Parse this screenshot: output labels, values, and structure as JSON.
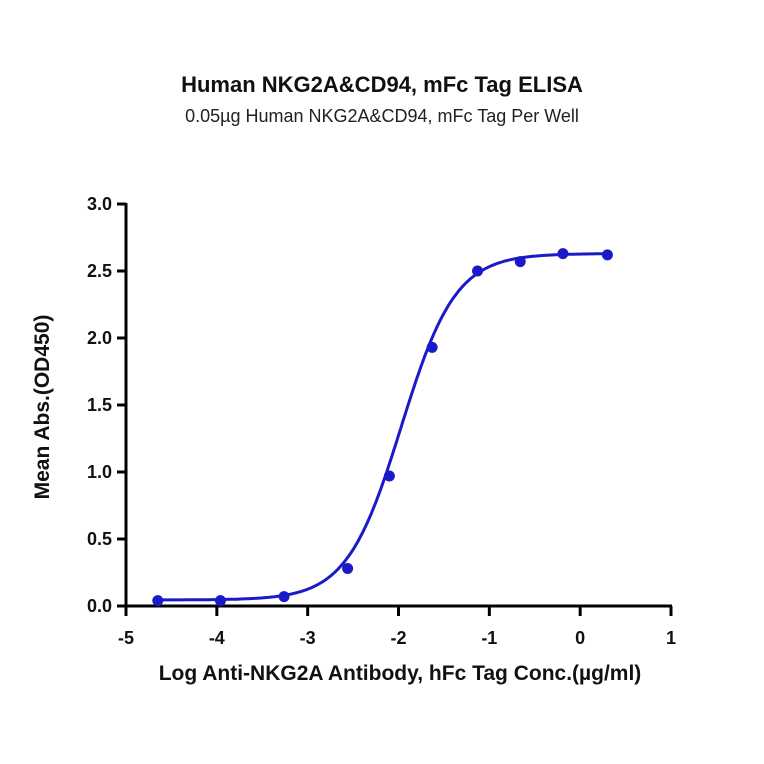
{
  "chart_data": {
    "type": "scatter",
    "title": "Human NKG2A&CD94, mFc Tag ELISA",
    "subtitle": "0.05µg Human NKG2A&CD94, mFc Tag Per Well",
    "xlabel": "Log Anti-NKG2A Antibody, hFc Tag Conc.(µg/ml)",
    "ylabel": "Mean Abs.(OD450)",
    "xlim": [
      -5,
      1
    ],
    "ylim": [
      0,
      3.0
    ],
    "xticks": [
      "-5",
      "-4",
      "-3",
      "-2",
      "-1",
      "0",
      "1"
    ],
    "yticks": [
      "0.0",
      "0.5",
      "1.0",
      "1.5",
      "2.0",
      "2.5",
      "3.0"
    ],
    "grid": false,
    "legend": null,
    "series": [
      {
        "name": "Mean Abs.(OD450)",
        "color": "#1a1ac8",
        "fit": "4-parameter logistic (sigmoidal) curve",
        "x": [
          -4.65,
          -3.96,
          -3.26,
          -2.56,
          -2.1,
          -1.63,
          -1.13,
          -0.66,
          -0.19,
          0.3
        ],
        "y": [
          0.04,
          0.04,
          0.07,
          0.28,
          0.97,
          1.93,
          2.5,
          2.57,
          2.63,
          2.62
        ]
      }
    ]
  }
}
